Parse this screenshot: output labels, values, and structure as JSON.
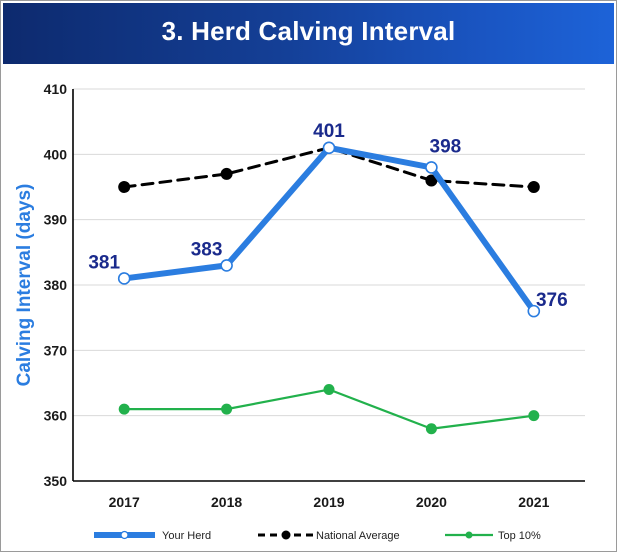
{
  "header": {
    "title": "3. Herd Calving Interval"
  },
  "chart_data": {
    "type": "line",
    "title": "3. Herd Calving Interval",
    "xlabel": "",
    "ylabel": "Calving Interval (days)",
    "categories": [
      "2017",
      "2018",
      "2019",
      "2020",
      "2021"
    ],
    "ylim": [
      350,
      410
    ],
    "yticks": [
      350,
      360,
      370,
      380,
      390,
      400,
      410
    ],
    "grid": true,
    "legend_position": "bottom",
    "series": [
      {
        "name": "Your Herd",
        "values": [
          381,
          383,
          401,
          398,
          376
        ],
        "color": "#2b7de0",
        "style": "solid-thick",
        "marker": "hollow-circle",
        "data_labels": [
          "381",
          "383",
          "401",
          "398",
          "376"
        ],
        "label_color": "#1a2a8c"
      },
      {
        "name": "National Average",
        "values": [
          395,
          397,
          401,
          396,
          395
        ],
        "color": "#000000",
        "style": "dashed",
        "marker": "filled-circle"
      },
      {
        "name": "Top 10%",
        "values": [
          361,
          361,
          364,
          358,
          360
        ],
        "color": "#22b14c",
        "style": "solid",
        "marker": "filled-circle"
      }
    ]
  }
}
